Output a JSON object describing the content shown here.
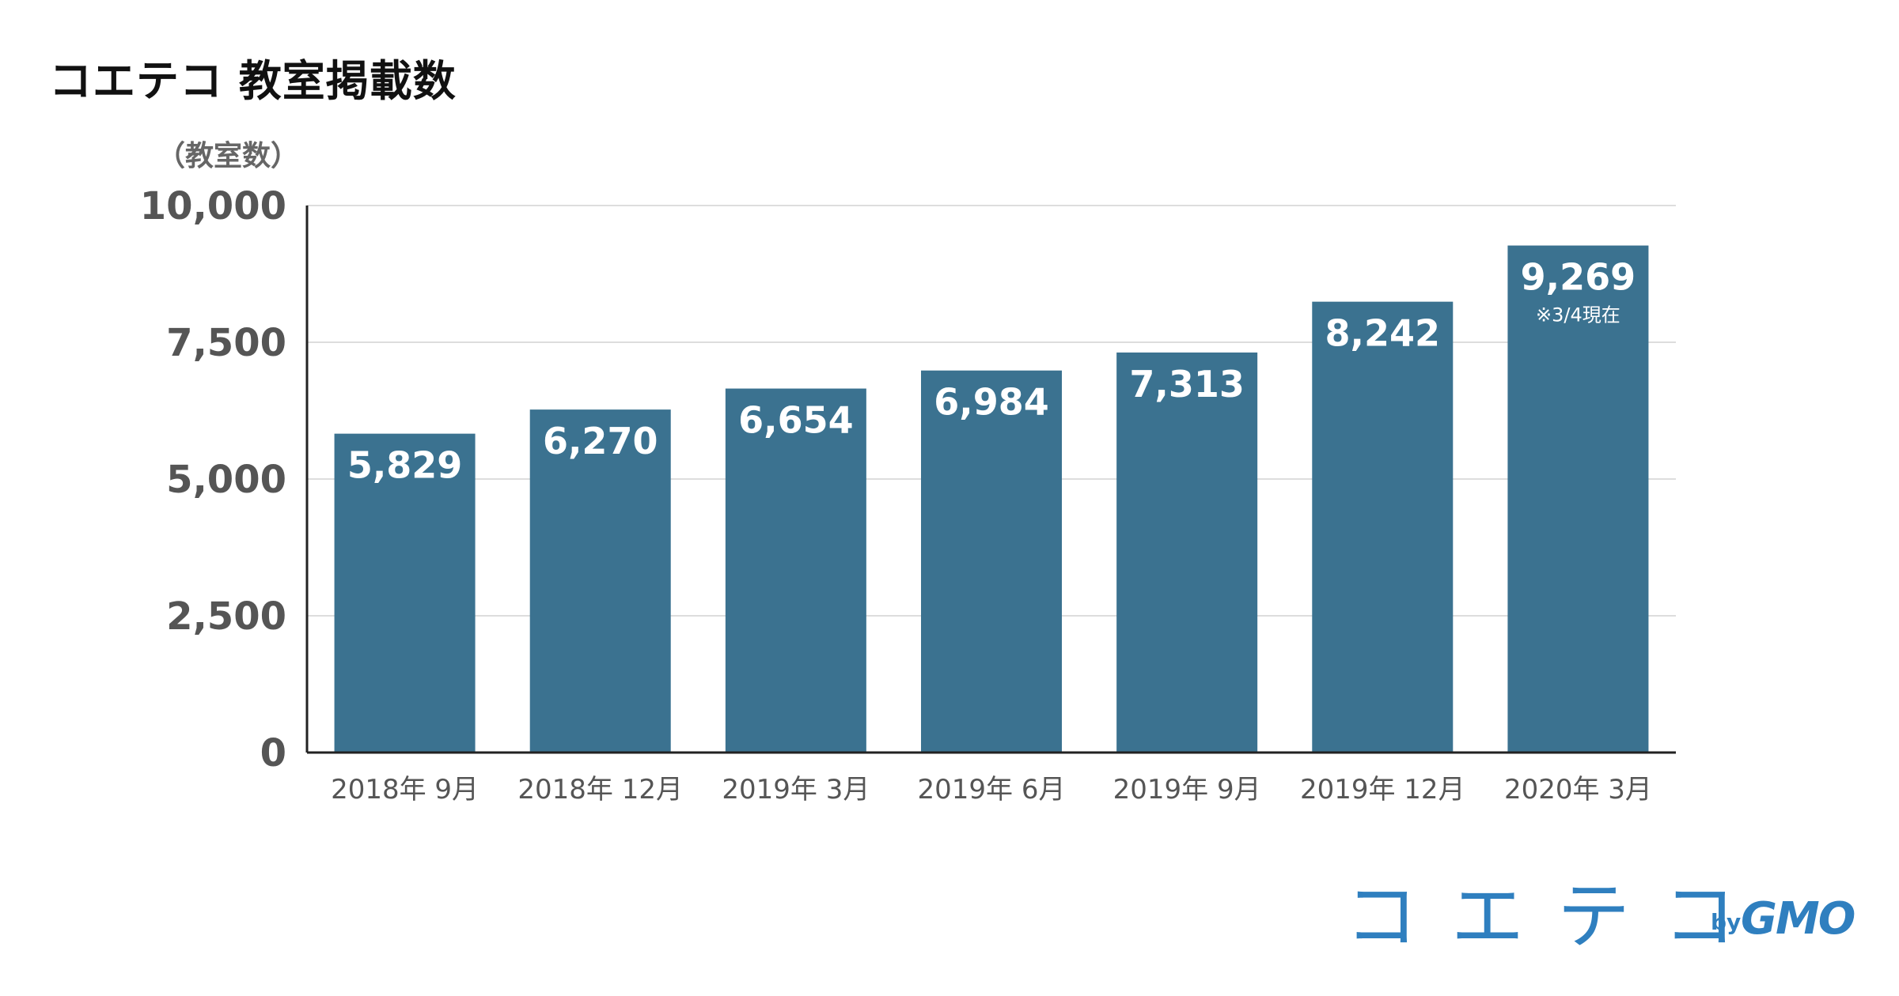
{
  "chart_data": {
    "type": "bar",
    "title": "コエテコ 教室掲載数",
    "ylabel": "（教室数）",
    "categories": [
      "2018年 9月",
      "2018年 12月",
      "2019年 3月",
      "2019年 6月",
      "2019年 9月",
      "2019年 12月",
      "2020年 3月"
    ],
    "values": [
      5829,
      6270,
      6654,
      6984,
      7313,
      8242,
      9269
    ],
    "value_labels": [
      "5,829",
      "6,270",
      "6,654",
      "6,984",
      "7,313",
      "8,242",
      "9,269"
    ],
    "annotation": {
      "category_index": 6,
      "text": "※3/4現在"
    },
    "ylim": [
      0,
      10000
    ],
    "yticks": [
      0,
      2500,
      5000,
      7500,
      10000
    ],
    "ytick_labels": [
      "0",
      "2,500",
      "5,000",
      "7,500",
      "10,000"
    ],
    "grid": true,
    "legend": "none",
    "bar_color": "#3b7290",
    "value_label_color": "#ffffff",
    "tick_color": "#555555"
  },
  "logo": {
    "name": "コエテコ",
    "by": "by",
    "brand": "GMO",
    "color": "#2f7fbf"
  }
}
